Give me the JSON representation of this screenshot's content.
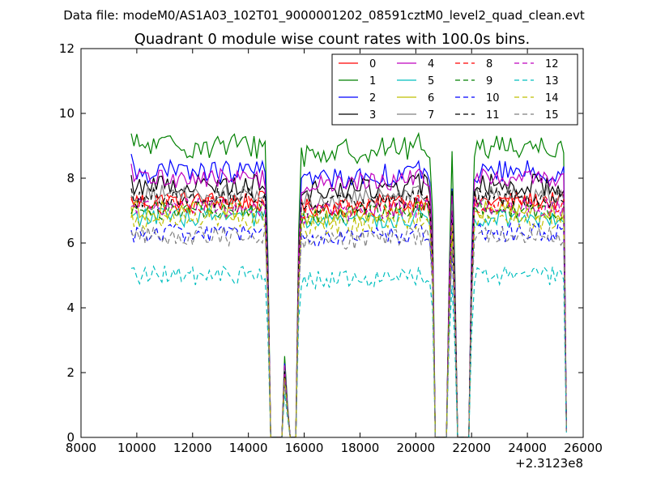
{
  "figure": {
    "suptitle": "Data file: modeM0/AS1A03_102T01_9000001202_08591cztM0_level2_quad_clean.evt"
  },
  "chart_data": {
    "type": "line",
    "title": "Quadrant 0 module wise count rates with 100.0s bins.",
    "xlabel": "",
    "ylabel": "",
    "x_offset_label": "+2.3123e8",
    "xlim": [
      8000,
      26000
    ],
    "ylim": [
      0,
      12
    ],
    "xticks": [
      8000,
      10000,
      12000,
      14000,
      16000,
      18000,
      20000,
      22000,
      24000,
      26000
    ],
    "yticks": [
      0,
      2,
      4,
      6,
      8,
      10,
      12
    ],
    "xtick_labels": [
      "8000",
      "10000",
      "12000",
      "14000",
      "16000",
      "18000",
      "20000",
      "22000",
      "24000",
      "26000"
    ],
    "ytick_labels": [
      "0",
      "2",
      "4",
      "6",
      "8",
      "10",
      "12"
    ],
    "grid": false,
    "legend_position": "top-right",
    "legend_columns": 4,
    "time_profile": [
      {
        "x": 9800,
        "f": 1.0
      },
      {
        "x": 14600,
        "f": 1.0
      },
      {
        "x": 14700,
        "f": 0.62
      },
      {
        "x": 14800,
        "f": 0.0
      },
      {
        "x": 15200,
        "f": 0.0
      },
      {
        "x": 15300,
        "f": 0.28
      },
      {
        "x": 15400,
        "f": 0.12
      },
      {
        "x": 15500,
        "f": 0.0
      },
      {
        "x": 15700,
        "f": 0.0
      },
      {
        "x": 15800,
        "f": 0.7
      },
      {
        "x": 15900,
        "f": 0.97
      },
      {
        "x": 20500,
        "f": 1.0
      },
      {
        "x": 20600,
        "f": 0.75
      },
      {
        "x": 20700,
        "f": 0.0
      },
      {
        "x": 21100,
        "f": 0.0
      },
      {
        "x": 21200,
        "f": 0.6
      },
      {
        "x": 21300,
        "f": 0.95
      },
      {
        "x": 21400,
        "f": 0.55
      },
      {
        "x": 21500,
        "f": 0.0
      },
      {
        "x": 21900,
        "f": 0.0
      },
      {
        "x": 22000,
        "f": 0.65
      },
      {
        "x": 22100,
        "f": 1.0
      },
      {
        "x": 25300,
        "f": 1.0
      },
      {
        "x": 25400,
        "f": 0.03
      }
    ],
    "series": [
      {
        "name": "0",
        "color": "#ff0000",
        "dash": "solid",
        "level": 7.3,
        "noise": 0.3
      },
      {
        "name": "1",
        "color": "#008000",
        "dash": "solid",
        "level": 9.0,
        "noise": 0.4
      },
      {
        "name": "2",
        "color": "#0000ff",
        "dash": "solid",
        "level": 8.2,
        "noise": 0.35
      },
      {
        "name": "3",
        "color": "#000000",
        "dash": "solid",
        "level": 7.8,
        "noise": 0.35
      },
      {
        "name": "4",
        "color": "#bf00bf",
        "dash": "solid",
        "level": 8.0,
        "noise": 0.3
      },
      {
        "name": "5",
        "color": "#00bfbf",
        "dash": "solid",
        "level": 6.8,
        "noise": 0.3
      },
      {
        "name": "6",
        "color": "#bfbf00",
        "dash": "solid",
        "level": 7.0,
        "noise": 0.3
      },
      {
        "name": "7",
        "color": "#808080",
        "dash": "solid",
        "level": 7.5,
        "noise": 0.3
      },
      {
        "name": "8",
        "color": "#ff0000",
        "dash": "dashed",
        "level": 7.2,
        "noise": 0.3
      },
      {
        "name": "9",
        "color": "#008000",
        "dash": "dashed",
        "level": 7.0,
        "noise": 0.3
      },
      {
        "name": "10",
        "color": "#0000ff",
        "dash": "dashed",
        "level": 6.3,
        "noise": 0.3
      },
      {
        "name": "11",
        "color": "#000000",
        "dash": "dashed",
        "level": 7.4,
        "noise": 0.3
      },
      {
        "name": "12",
        "color": "#bf00bf",
        "dash": "dashed",
        "level": 7.1,
        "noise": 0.3
      },
      {
        "name": "13",
        "color": "#00bfbf",
        "dash": "dashed",
        "level": 5.0,
        "noise": 0.3
      },
      {
        "name": "14",
        "color": "#bfbf00",
        "dash": "dashed",
        "level": 6.7,
        "noise": 0.3
      },
      {
        "name": "15",
        "color": "#808080",
        "dash": "dashed",
        "level": 6.2,
        "noise": 0.3
      }
    ]
  }
}
